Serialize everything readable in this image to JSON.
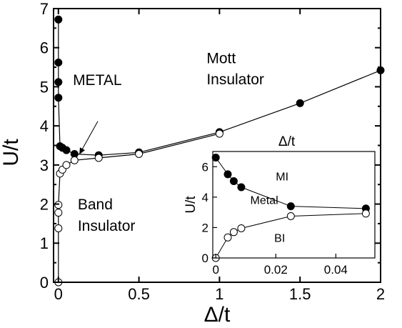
{
  "chart_data": [
    {
      "type": "line",
      "xlabel": "Δ/t",
      "ylabel": "U/t",
      "xlim": [
        -0.03,
        2.0
      ],
      "ylim": [
        0,
        7
      ],
      "x_ticks": [
        0,
        0.5,
        1,
        1.5,
        2
      ],
      "x_tick_labels": [
        "0",
        "0.5",
        "1",
        "1.5",
        "2"
      ],
      "y_ticks": [
        0,
        1,
        2,
        3,
        4,
        5,
        6,
        7
      ],
      "y_tick_labels": [
        "0",
        "1",
        "2",
        "3",
        "4",
        "5",
        "6",
        "7"
      ],
      "grid": false,
      "legend": "none",
      "series": [
        {
          "marker": "filled-circle",
          "x": [
            0,
            0,
            0,
            0,
            0.01,
            0.025,
            0.05,
            0.1,
            0.25,
            0.5,
            1.0,
            1.5,
            2.0
          ],
          "y": [
            6.72,
            5.62,
            5.12,
            4.72,
            3.48,
            3.44,
            3.38,
            3.28,
            3.25,
            3.32,
            3.84,
            4.58,
            5.42
          ]
        },
        {
          "marker": "open-circle",
          "x": [
            0,
            0,
            0,
            0,
            0.01,
            0.025,
            0.05,
            0.1,
            0.25,
            0.5,
            1.0
          ],
          "y": [
            0.0,
            1.38,
            1.78,
            1.98,
            2.78,
            2.88,
            3.0,
            3.12,
            3.18,
            3.28,
            3.8
          ]
        }
      ],
      "annotations": [
        {
          "text": "METAL",
          "x": 0.09,
          "y": 5.04
        },
        {
          "text": "Mott",
          "x": 0.92,
          "y": 5.6
        },
        {
          "text": "Insulator",
          "x": 0.92,
          "y": 5.06
        },
        {
          "text": "Band",
          "x": 0.12,
          "y": 1.86
        },
        {
          "text": "Insulator",
          "x": 0.12,
          "y": 1.32
        }
      ],
      "arrow": {
        "from": [
          0.245,
          4.12
        ],
        "to": [
          0.13,
          3.27
        ]
      }
    },
    {
      "type": "line",
      "title": "Δ/t",
      "ylabel": "U/t",
      "xlim": [
        -0.001,
        0.053
      ],
      "ylim": [
        0,
        7
      ],
      "x_ticks": [
        0,
        0.02,
        0.04
      ],
      "x_tick_labels": [
        "0",
        "0.02",
        "0.04"
      ],
      "y_ticks": [
        0,
        2,
        4,
        6
      ],
      "y_tick_labels": [
        "0",
        "2",
        "4",
        "6"
      ],
      "grid": false,
      "legend": "none",
      "series": [
        {
          "marker": "filled-circle",
          "x": [
            0,
            0.004,
            0.006,
            0.0085,
            0.025,
            0.05
          ],
          "y": [
            6.6,
            5.5,
            5.05,
            4.65,
            3.4,
            3.25
          ]
        },
        {
          "marker": "open-circle",
          "x": [
            0,
            0.004,
            0.006,
            0.0085,
            0.025,
            0.05
          ],
          "y": [
            0.0,
            1.35,
            1.7,
            1.95,
            2.75,
            2.92
          ]
        }
      ],
      "annotations": [
        {
          "text": "MI",
          "x": 0.02,
          "y": 5.1
        },
        {
          "text": "Metal",
          "x": 0.0115,
          "y": 3.55
        },
        {
          "text": "BI",
          "x": 0.0195,
          "y": 1.05
        }
      ]
    }
  ]
}
